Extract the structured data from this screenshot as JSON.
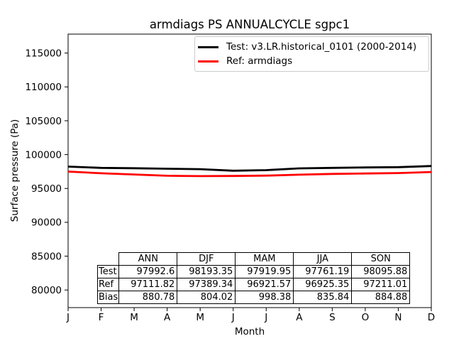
{
  "title": "armdiags PS ANNUALCYCLE sgpc1",
  "axes": {
    "xlabel": "Month",
    "ylabel": "Surface pressure (Pa)"
  },
  "legend": {
    "entries": [
      {
        "label": "Test: v3.LR.historical_0101 (2000-2014)",
        "color": "#000000"
      },
      {
        "label": "Ref: armdiags",
        "color": "#ff0000"
      }
    ]
  },
  "chart_data": {
    "type": "line",
    "title": "armdiags PS ANNUALCYCLE sgpc1",
    "xlabel": "Month",
    "ylabel": "Surface pressure (Pa)",
    "x_tick_labels": [
      "J",
      "F",
      "M",
      "A",
      "M",
      "J",
      "J",
      "A",
      "S",
      "O",
      "N",
      "D"
    ],
    "y_ticks": [
      80000,
      85000,
      90000,
      95000,
      100000,
      105000,
      110000,
      115000
    ],
    "ylim": [
      77400,
      117800
    ],
    "grid": false,
    "legend_position": "upper right",
    "series": [
      {
        "name": "test",
        "label": "Test: v3.LR.historical_0101 (2000-2014)",
        "color": "#000000",
        "values": [
          98230,
          98040,
          97990,
          97920,
          97850,
          97620,
          97700,
          97963,
          98040,
          98100,
          98148,
          98310
        ]
      },
      {
        "name": "ref",
        "label": "Ref: armdiags",
        "color": "#ff0000",
        "values": [
          97500,
          97240,
          97060,
          96880,
          96825,
          96840,
          96900,
          97036,
          97150,
          97210,
          97273,
          97428
        ]
      }
    ],
    "stats_table": {
      "col_headers": [
        "ANN",
        "DJF",
        "MAM",
        "JJA",
        "SON"
      ],
      "rows": [
        {
          "label": "Test",
          "values": [
            "97992.6",
            "98193.35",
            "97919.95",
            "97761.19",
            "98095.88"
          ]
        },
        {
          "label": "Ref",
          "values": [
            "97111.82",
            "97389.34",
            "96921.57",
            "96925.35",
            "97211.01"
          ]
        },
        {
          "label": "Bias",
          "values": [
            "880.78",
            "804.02",
            "998.38",
            "835.84",
            "884.88"
          ]
        }
      ]
    }
  }
}
